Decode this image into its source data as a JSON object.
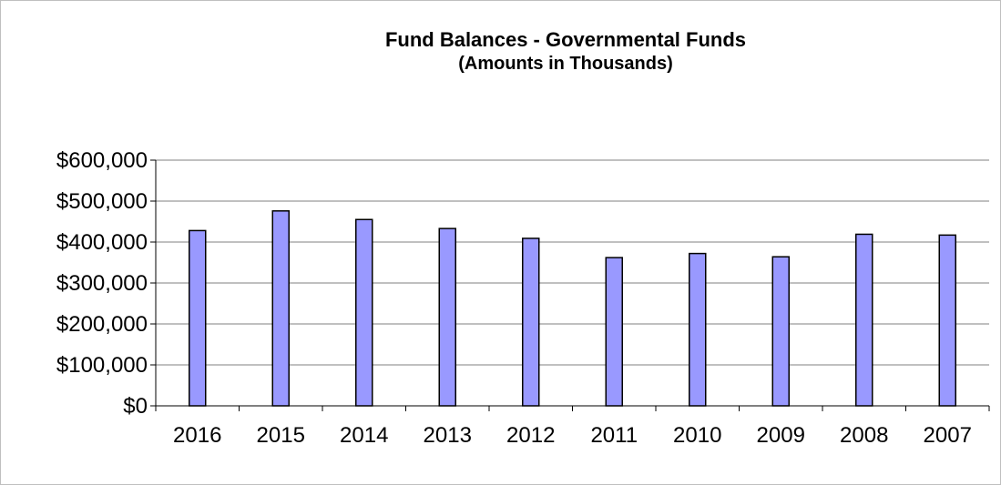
{
  "chart_data": {
    "type": "bar",
    "title": "Fund Balances - Governmental Funds",
    "subtitle": "(Amounts in Thousands)",
    "categories": [
      "2016",
      "2015",
      "2014",
      "2013",
      "2012",
      "2011",
      "2010",
      "2009",
      "2008",
      "2007"
    ],
    "series": [
      {
        "values": [
          428000,
          476000,
          455000,
          433000,
          409000,
          362000,
          372000,
          364000,
          419000,
          417000
        ]
      }
    ],
    "ylim": [
      0,
      600000
    ],
    "yticks": [
      0,
      100000,
      200000,
      300000,
      400000,
      500000,
      600000
    ],
    "ytick_labels": [
      "$0",
      "$100,000",
      "$200,000",
      "$300,000",
      "$400,000",
      "$500,000",
      "$600,000"
    ],
    "grid": true,
    "legend": "none",
    "colors": {
      "bar_fill": "#9999ff",
      "bar_stroke": "#000000",
      "grid": "#808080",
      "axis": "#000000"
    }
  }
}
